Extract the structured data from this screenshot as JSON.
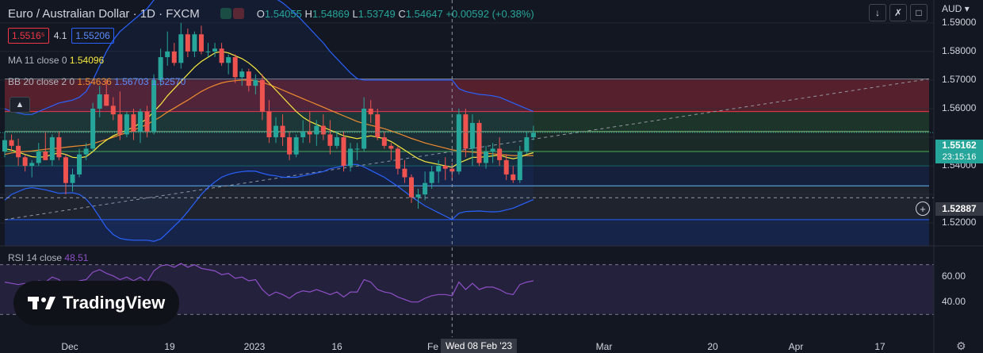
{
  "header": {
    "title": "Euro / Australian Dollar · 1D · FXCM",
    "open_label": "O",
    "open": "1.54055",
    "high_label": "H",
    "high": "1.54869",
    "low_label": "L",
    "low": "1.53749",
    "close_label": "C",
    "close": "1.54647",
    "change": "+0.00592 (+0.38%)"
  },
  "trade": {
    "sell": "1.5516⁵",
    "spread": "4.1",
    "buy": "1.55206"
  },
  "indicators": {
    "ma": {
      "name": "MA",
      "params": "11 close 0",
      "value": "1.54096"
    },
    "bb": {
      "name": "BB",
      "params": "20 close 2 0",
      "basis": "1.54636",
      "upper": "1.56703",
      "lower": "1.52570"
    },
    "rsi": {
      "name": "RSI",
      "params": "14 close",
      "value": "48.51"
    }
  },
  "toolbar": {
    "currency": "AUD"
  },
  "y_axis": {
    "labels": [
      "1.59000",
      "1.58000",
      "1.57000",
      "1.56000",
      "1.54000",
      "1.52000"
    ],
    "current_price": "1.55162",
    "countdown": "23:15:16",
    "cursor_price": "1.52887",
    "rsi_labels": [
      "60.00",
      "40.00"
    ]
  },
  "x_axis": {
    "labels": [
      "Dec",
      "19",
      "2023",
      "16",
      "Fe",
      "Mar",
      "20",
      "Apr",
      "17"
    ],
    "cursor_date": "Wed 08 Feb '23"
  },
  "logo": {
    "text": "TradingView"
  },
  "icons": [
    "chevron-up-icon",
    "minimize-icon",
    "expand-icon",
    "maximize-icon",
    "crosshair-plus-icon",
    "gear-icon",
    "tradingview-logo-icon"
  ],
  "colors": {
    "up": "#26a69a",
    "down": "#ef5350",
    "ma": "#f7e93f",
    "bb_basis": "#f08c2e",
    "bb_band": "#2962ff",
    "rsi": "#8e4fc7"
  },
  "chart_data": {
    "type": "candlestick",
    "title": "Euro / Australian Dollar · 1D · FXCM",
    "ylim": [
      1.512,
      1.598
    ],
    "candles": [
      {
        "o": 1.545,
        "h": 1.552,
        "l": 1.543,
        "c": 1.549
      },
      {
        "o": 1.549,
        "h": 1.551,
        "l": 1.545,
        "c": 1.547
      },
      {
        "o": 1.547,
        "h": 1.5495,
        "l": 1.54,
        "c": 1.543
      },
      {
        "o": 1.543,
        "h": 1.544,
        "l": 1.538,
        "c": 1.54
      },
      {
        "o": 1.54,
        "h": 1.542,
        "l": 1.536,
        "c": 1.541
      },
      {
        "o": 1.541,
        "h": 1.548,
        "l": 1.54,
        "c": 1.545
      },
      {
        "o": 1.545,
        "h": 1.552,
        "l": 1.542,
        "c": 1.542
      },
      {
        "o": 1.542,
        "h": 1.551,
        "l": 1.54,
        "c": 1.55
      },
      {
        "o": 1.55,
        "h": 1.552,
        "l": 1.542,
        "c": 1.543
      },
      {
        "o": 1.543,
        "h": 1.544,
        "l": 1.53,
        "c": 1.534
      },
      {
        "o": 1.534,
        "h": 1.539,
        "l": 1.531,
        "c": 1.537
      },
      {
        "o": 1.537,
        "h": 1.546,
        "l": 1.536,
        "c": 1.544
      },
      {
        "o": 1.544,
        "h": 1.548,
        "l": 1.542,
        "c": 1.546
      },
      {
        "o": 1.546,
        "h": 1.562,
        "l": 1.545,
        "c": 1.56
      },
      {
        "o": 1.56,
        "h": 1.568,
        "l": 1.557,
        "c": 1.565
      },
      {
        "o": 1.565,
        "h": 1.57,
        "l": 1.561,
        "c": 1.561
      },
      {
        "o": 1.561,
        "h": 1.564,
        "l": 1.556,
        "c": 1.558
      },
      {
        "o": 1.558,
        "h": 1.566,
        "l": 1.549,
        "c": 1.551
      },
      {
        "o": 1.551,
        "h": 1.559,
        "l": 1.55,
        "c": 1.558
      },
      {
        "o": 1.558,
        "h": 1.56,
        "l": 1.549,
        "c": 1.552
      },
      {
        "o": 1.552,
        "h": 1.56,
        "l": 1.548,
        "c": 1.559
      },
      {
        "o": 1.559,
        "h": 1.561,
        "l": 1.55,
        "c": 1.552
      },
      {
        "o": 1.552,
        "h": 1.572,
        "l": 1.551,
        "c": 1.57
      },
      {
        "o": 1.57,
        "h": 1.581,
        "l": 1.568,
        "c": 1.578
      },
      {
        "o": 1.578,
        "h": 1.587,
        "l": 1.575,
        "c": 1.58
      },
      {
        "o": 1.58,
        "h": 1.583,
        "l": 1.575,
        "c": 1.576
      },
      {
        "o": 1.576,
        "h": 1.59,
        "l": 1.574,
        "c": 1.586
      },
      {
        "o": 1.586,
        "h": 1.588,
        "l": 1.578,
        "c": 1.58
      },
      {
        "o": 1.58,
        "h": 1.587,
        "l": 1.578,
        "c": 1.586
      },
      {
        "o": 1.586,
        "h": 1.589,
        "l": 1.579,
        "c": 1.58
      },
      {
        "o": 1.58,
        "h": 1.583,
        "l": 1.578,
        "c": 1.58
      },
      {
        "o": 1.58,
        "h": 1.583,
        "l": 1.578,
        "c": 1.581
      },
      {
        "o": 1.581,
        "h": 1.583,
        "l": 1.575,
        "c": 1.576
      },
      {
        "o": 1.576,
        "h": 1.579,
        "l": 1.572,
        "c": 1.578
      },
      {
        "o": 1.578,
        "h": 1.579,
        "l": 1.569,
        "c": 1.571
      },
      {
        "o": 1.571,
        "h": 1.574,
        "l": 1.568,
        "c": 1.573
      },
      {
        "o": 1.573,
        "h": 1.574,
        "l": 1.566,
        "c": 1.568
      },
      {
        "o": 1.568,
        "h": 1.572,
        "l": 1.565,
        "c": 1.57
      },
      {
        "o": 1.57,
        "h": 1.572,
        "l": 1.556,
        "c": 1.559
      },
      {
        "o": 1.559,
        "h": 1.563,
        "l": 1.548,
        "c": 1.55
      },
      {
        "o": 1.55,
        "h": 1.557,
        "l": 1.548,
        "c": 1.554
      },
      {
        "o": 1.554,
        "h": 1.558,
        "l": 1.547,
        "c": 1.55
      },
      {
        "o": 1.55,
        "h": 1.552,
        "l": 1.542,
        "c": 1.544
      },
      {
        "o": 1.544,
        "h": 1.551,
        "l": 1.543,
        "c": 1.55
      },
      {
        "o": 1.55,
        "h": 1.556,
        "l": 1.548,
        "c": 1.552
      },
      {
        "o": 1.552,
        "h": 1.559,
        "l": 1.548,
        "c": 1.551
      },
      {
        "o": 1.551,
        "h": 1.556,
        "l": 1.547,
        "c": 1.554
      },
      {
        "o": 1.554,
        "h": 1.558,
        "l": 1.549,
        "c": 1.551
      },
      {
        "o": 1.551,
        "h": 1.556,
        "l": 1.544,
        "c": 1.547
      },
      {
        "o": 1.547,
        "h": 1.552,
        "l": 1.546,
        "c": 1.55
      },
      {
        "o": 1.55,
        "h": 1.552,
        "l": 1.538,
        "c": 1.54
      },
      {
        "o": 1.54,
        "h": 1.548,
        "l": 1.538,
        "c": 1.546
      },
      {
        "o": 1.546,
        "h": 1.548,
        "l": 1.542,
        "c": 1.546
      },
      {
        "o": 1.546,
        "h": 1.564,
        "l": 1.545,
        "c": 1.56
      },
      {
        "o": 1.56,
        "h": 1.563,
        "l": 1.555,
        "c": 1.558
      },
      {
        "o": 1.558,
        "h": 1.56,
        "l": 1.549,
        "c": 1.55
      },
      {
        "o": 1.55,
        "h": 1.552,
        "l": 1.546,
        "c": 1.547
      },
      {
        "o": 1.547,
        "h": 1.548,
        "l": 1.542,
        "c": 1.546
      },
      {
        "o": 1.546,
        "h": 1.547,
        "l": 1.537,
        "c": 1.539
      },
      {
        "o": 1.539,
        "h": 1.542,
        "l": 1.534,
        "c": 1.536
      },
      {
        "o": 1.536,
        "h": 1.537,
        "l": 1.527,
        "c": 1.529
      },
      {
        "o": 1.529,
        "h": 1.532,
        "l": 1.525,
        "c": 1.53
      },
      {
        "o": 1.53,
        "h": 1.538,
        "l": 1.528,
        "c": 1.534
      },
      {
        "o": 1.534,
        "h": 1.54,
        "l": 1.532,
        "c": 1.538
      },
      {
        "o": 1.538,
        "h": 1.542,
        "l": 1.534,
        "c": 1.54
      },
      {
        "o": 1.54,
        "h": 1.543,
        "l": 1.535,
        "c": 1.539
      },
      {
        "o": 1.539,
        "h": 1.541,
        "l": 1.535,
        "c": 1.538
      },
      {
        "o": 1.538,
        "h": 1.56,
        "l": 1.537,
        "c": 1.558
      },
      {
        "o": 1.558,
        "h": 1.56,
        "l": 1.543,
        "c": 1.546
      },
      {
        "o": 1.546,
        "h": 1.558,
        "l": 1.54,
        "c": 1.555
      },
      {
        "o": 1.555,
        "h": 1.556,
        "l": 1.54,
        "c": 1.541
      },
      {
        "o": 1.541,
        "h": 1.547,
        "l": 1.539,
        "c": 1.545
      },
      {
        "o": 1.545,
        "h": 1.548,
        "l": 1.541,
        "c": 1.546
      },
      {
        "o": 1.546,
        "h": 1.55,
        "l": 1.54,
        "c": 1.542
      },
      {
        "o": 1.542,
        "h": 1.544,
        "l": 1.535,
        "c": 1.537
      },
      {
        "o": 1.537,
        "h": 1.54,
        "l": 1.534,
        "c": 1.535
      },
      {
        "o": 1.535,
        "h": 1.547,
        "l": 1.534,
        "c": 1.545
      },
      {
        "o": 1.545,
        "h": 1.552,
        "l": 1.544,
        "c": 1.55
      },
      {
        "o": 1.55,
        "h": 1.554,
        "l": 1.549,
        "c": 1.5516
      }
    ],
    "ma": [
      1.546,
      1.5455,
      1.5448,
      1.544,
      1.5432,
      1.543,
      1.5432,
      1.544,
      1.5445,
      1.544,
      1.543,
      1.5428,
      1.5432,
      1.545,
      1.5472,
      1.549,
      1.5505,
      1.5515,
      1.5525,
      1.5535,
      1.555,
      1.5565,
      1.559,
      1.5615,
      1.5645,
      1.567,
      1.5695,
      1.572,
      1.5745,
      1.5765,
      1.578,
      1.5795,
      1.58,
      1.5795,
      1.5785,
      1.5775,
      1.576,
      1.574,
      1.5715,
      1.569,
      1.5665,
      1.564,
      1.5615,
      1.559,
      1.557,
      1.5555,
      1.5545,
      1.5535,
      1.5525,
      1.5515,
      1.5505,
      1.55,
      1.5495,
      1.55,
      1.5505,
      1.55,
      1.5495,
      1.5485,
      1.547,
      1.5455,
      1.544,
      1.5425,
      1.5415,
      1.541,
      1.5405,
      1.54,
      1.5395,
      1.541,
      1.542,
      1.543,
      1.543,
      1.5432,
      1.5435,
      1.5438,
      1.543,
      1.5425,
      1.543,
      1.544,
      1.5446
    ],
    "bb_basis": [
      1.544,
      1.5445,
      1.5448,
      1.545,
      1.5452,
      1.5455,
      1.5458,
      1.546,
      1.5462,
      1.5465,
      1.5468,
      1.547,
      1.5472,
      1.5478,
      1.5485,
      1.5492,
      1.55,
      1.5508,
      1.5516,
      1.5525,
      1.5535,
      1.5545,
      1.5558,
      1.5572,
      1.5588,
      1.5602,
      1.5616,
      1.563,
      1.5645,
      1.566,
      1.5672,
      1.5682,
      1.569,
      1.5695,
      1.5698,
      1.57,
      1.57,
      1.5698,
      1.5692,
      1.5684,
      1.5675,
      1.5665,
      1.5655,
      1.5645,
      1.5635,
      1.5625,
      1.5615,
      1.5605,
      1.5595,
      1.5585,
      1.5575,
      1.5565,
      1.5555,
      1.5548,
      1.5542,
      1.5536,
      1.553,
      1.5522,
      1.5514,
      1.5505,
      1.5496,
      1.5488,
      1.548,
      1.5474,
      1.5468,
      1.5462,
      1.5456,
      1.5452,
      1.545,
      1.5448,
      1.5446,
      1.5444,
      1.5442,
      1.544,
      1.5438,
      1.5436,
      1.5436,
      1.5436,
      1.5436
    ],
    "bb_upper": [
      1.56,
      1.559,
      1.5585,
      1.558,
      1.558,
      1.559,
      1.56,
      1.561,
      1.562,
      1.5625,
      1.563,
      1.564,
      1.566,
      1.57,
      1.575,
      1.58,
      1.584,
      1.587,
      1.589,
      1.591,
      1.593,
      1.595,
      1.598,
      1.6,
      1.601,
      1.6015,
      1.602,
      1.602,
      1.602,
      1.602,
      1.602,
      1.602,
      1.602,
      1.602,
      1.602,
      1.602,
      1.6018,
      1.6015,
      1.601,
      1.6,
      1.5985,
      1.597,
      1.595,
      1.593,
      1.5905,
      1.588,
      1.5855,
      1.583,
      1.58,
      1.5775,
      1.575,
      1.5725,
      1.5705,
      1.57,
      1.57,
      1.57,
      1.57,
      1.57,
      1.57,
      1.57,
      1.57,
      1.57,
      1.57,
      1.57,
      1.57,
      1.57,
      1.57,
      1.567,
      1.566,
      1.5655,
      1.565,
      1.5648,
      1.5645,
      1.564,
      1.563,
      1.562,
      1.561,
      1.56,
      1.559
    ],
    "bb_lower": [
      1.528,
      1.53,
      1.531,
      1.532,
      1.5324,
      1.532,
      1.5316,
      1.531,
      1.5304,
      1.5305,
      1.5306,
      1.53,
      1.5284,
      1.5256,
      1.522,
      1.5184,
      1.516,
      1.5146,
      1.5142,
      1.514,
      1.514,
      1.514,
      1.5136,
      1.5144,
      1.5166,
      1.5189,
      1.5212,
      1.524,
      1.527,
      1.53,
      1.5324,
      1.5344,
      1.536,
      1.537,
      1.5376,
      1.538,
      1.5382,
      1.5381,
      1.5374,
      1.5368,
      1.5365,
      1.536,
      1.536,
      1.536,
      1.5365,
      1.537,
      1.5375,
      1.538,
      1.539,
      1.5395,
      1.54,
      1.5405,
      1.5405,
      1.5396,
      1.5384,
      1.5372,
      1.536,
      1.5344,
      1.5328,
      1.531,
      1.5292,
      1.5276,
      1.526,
      1.5248,
      1.5236,
      1.5224,
      1.5212,
      1.5234,
      1.524,
      1.5241,
      1.5242,
      1.524,
      1.5239,
      1.524,
      1.5246,
      1.5252,
      1.5262,
      1.5272,
      1.5282
    ],
    "rsi": [
      56,
      55,
      54,
      55,
      53,
      57,
      56,
      60,
      58,
      52,
      54,
      57,
      58,
      64,
      66,
      63,
      61,
      58,
      60,
      57,
      60,
      56,
      65,
      69,
      70,
      68,
      71,
      68,
      70,
      67,
      66,
      65,
      62,
      63,
      59,
      60,
      57,
      58,
      50,
      45,
      48,
      46,
      43,
      47,
      49,
      48,
      50,
      48,
      46,
      48,
      44,
      48,
      48,
      58,
      56,
      50,
      48,
      47,
      44,
      42,
      40,
      40,
      43,
      45,
      46,
      46,
      45,
      56,
      50,
      55,
      50,
      52,
      52,
      50,
      47,
      46,
      54,
      56,
      57
    ],
    "fib_levels": [
      1.5704,
      1.559,
      1.552,
      1.545,
      1.54,
      1.533,
      1.5212
    ],
    "trendline": [
      [
        0,
        1.5212
      ],
      [
        100,
        1.5704
      ]
    ],
    "cursor_candle_index": 66,
    "cursor_price": 1.52887,
    "current_price": 1.55162
  }
}
